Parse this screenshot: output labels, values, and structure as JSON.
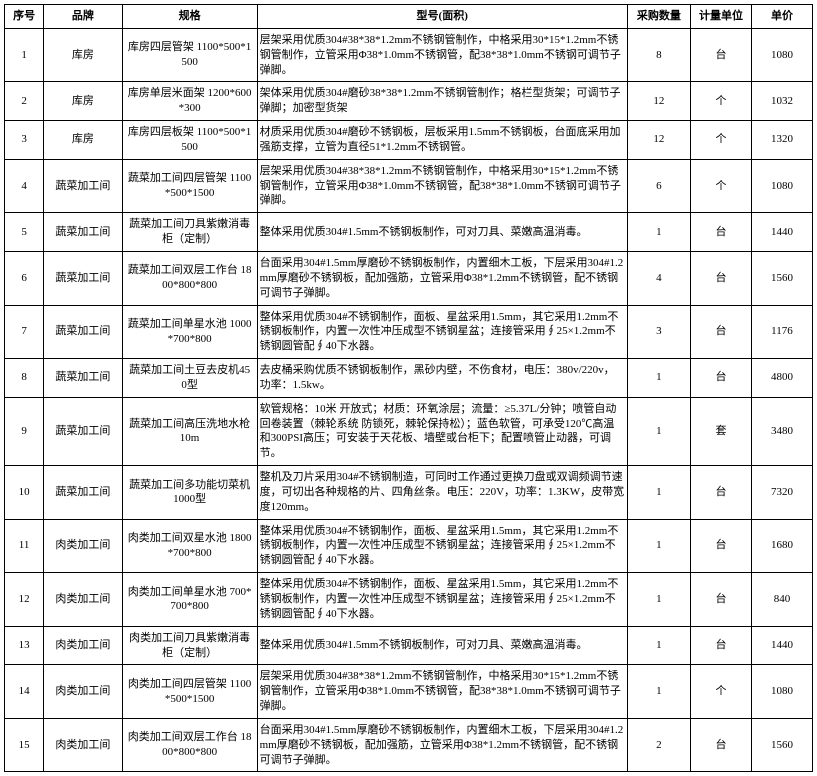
{
  "headers": {
    "seq": "序号",
    "brand": "品牌",
    "spec": "规格",
    "model": "型号(面积)",
    "qty": "采购数量",
    "unit": "计量单位",
    "price": "单价"
  },
  "rows": [
    {
      "seq": "1",
      "brand": "库房",
      "spec": "库房四层管架 1100*500*1500",
      "model": "层架采用优质304#38*38*1.2mm不锈钢管制作，中格采用30*15*1.2mm不锈钢管制作，立管采用Φ38*1.0mm不锈钢管，配38*38*1.0mm不锈钢可调节子弹脚。",
      "qty": "8",
      "unit": "台",
      "price": "1080"
    },
    {
      "seq": "2",
      "brand": "库房",
      "spec": "库房单层米面架 1200*600*300",
      "model": "架体采用优质304#磨砂38*38*1.2mm不锈钢管制作；格栏型货架；可调节子弹脚；加密型货架",
      "qty": "12",
      "unit": "个",
      "price": "1032"
    },
    {
      "seq": "3",
      "brand": "库房",
      "spec": "库房四层板架 1100*500*1500",
      "model": "材质采用优质304#磨砂不锈钢板，层板采用1.5mm不锈钢板，台面底采用加强筋支撑，立管为直径51*1.2mm不锈钢管。",
      "qty": "12",
      "unit": "个",
      "price": "1320"
    },
    {
      "seq": "4",
      "brand": "蔬菜加工间",
      "spec": "蔬菜加工间四层管架 1100*500*1500",
      "model": "层架采用优质304#38*38*1.2mm不锈钢管制作，中格采用30*15*1.2mm不锈钢管制作，立管采用Φ38*1.0mm不锈钢管，配38*38*1.0mm不锈钢可调节子弹脚。",
      "qty": "6",
      "unit": "个",
      "price": "1080"
    },
    {
      "seq": "5",
      "brand": "蔬菜加工间",
      "spec": "蔬菜加工间刀具紫嫩消毒柜（定制）",
      "model": "整体采用优质304#1.5mm不锈钢板制作，可对刀具、菜嫩高温消毒。",
      "qty": "1",
      "unit": "台",
      "price": "1440"
    },
    {
      "seq": "6",
      "brand": "蔬菜加工间",
      "spec": "蔬菜加工间双层工作台 1800*800*800",
      "model": "台面采用304#1.5mm厚磨砂不锈钢板制作，内置细木工板，下层采用304#1.2mm厚磨砂不锈钢板，配加强筋，立管采用Φ38*1.2mm不锈钢管，配不锈钢可调节子弹脚。",
      "qty": "4",
      "unit": "台",
      "price": "1560"
    },
    {
      "seq": "7",
      "brand": "蔬菜加工间",
      "spec": "蔬菜加工间单星水池 1000*700*800",
      "model": "整体采用优质304#不锈钢制作，面板、星盆采用1.5mm，其它采用1.2mm不锈钢板制作，内置一次性冲压成型不锈钢星盆；连接管采用∮25×1.2mm不锈钢圆管配∮40下水器。",
      "qty": "3",
      "unit": "台",
      "price": "1176"
    },
    {
      "seq": "8",
      "brand": "蔬菜加工间",
      "spec": "蔬菜加工间土豆去皮机450型",
      "model": "去皮桶采购优质不锈钢板制作，黑砂内壁，不伤食材，电压：380v/220v，功率：1.5kw。",
      "qty": "1",
      "unit": "台",
      "price": "4800"
    },
    {
      "seq": "9",
      "brand": "蔬菜加工间",
      "spec": "蔬菜加工间高压洗地水枪10m",
      "model": "软管规格：10米 开放式；材质：环氧涂层；流量：≥5.37L/分钟；喷管自动回卷装置（棘轮系统 防锁死，棘轮保持松）；蓝色软管，可承受120℃高温和300PSI高压；可安装于天花板、墙壁或台柜下；配置喷管止动器，可调节。",
      "qty": "1",
      "unit": "套",
      "price": "3480"
    },
    {
      "seq": "10",
      "brand": "蔬菜加工间",
      "spec": "蔬菜加工间多功能切菜机1000型",
      "model": "整机及刀片采用304#不锈钢制造，可同时工作通过更换刀盘或双调频调节速度，可切出各种规格的片、四角丝条。电压：220V，功率：1.3KW，皮带宽度120mm。",
      "qty": "1",
      "unit": "台",
      "price": "7320"
    },
    {
      "seq": "11",
      "brand": "肉类加工间",
      "spec": "肉类加工间双星水池 1800*700*800",
      "model": "整体采用优质304#不锈钢制作，面板、星盆采用1.5mm，其它采用1.2mm不锈钢板制作，内置一次性冲压成型不锈钢星盆；连接管采用∮25×1.2mm不锈钢圆管配∮40下水器。",
      "qty": "1",
      "unit": "台",
      "price": "1680"
    },
    {
      "seq": "12",
      "brand": "肉类加工间",
      "spec": "肉类加工间单星水池 700*700*800",
      "model": "整体采用优质304#不锈钢制作，面板、星盆采用1.5mm，其它采用1.2mm不锈钢板制作，内置一次性冲压成型不锈钢星盆；连接管采用∮25×1.2mm不锈钢圆管配∮40下水器。",
      "qty": "1",
      "unit": "台",
      "price": "840"
    },
    {
      "seq": "13",
      "brand": "肉类加工间",
      "spec": "肉类加工间刀具紫嫩消毒柜（定制）",
      "model": "整体采用优质304#1.5mm不锈钢板制作，可对刀具、菜嫩高温消毒。",
      "qty": "1",
      "unit": "台",
      "price": "1440"
    },
    {
      "seq": "14",
      "brand": "肉类加工间",
      "spec": "肉类加工间四层管架 1100*500*1500",
      "model": "层架采用优质304#38*38*1.2mm不锈钢管制作，中格采用30*15*1.2mm不锈钢管制作，立管采用Φ38*1.0mm不锈钢管，配38*38*1.0mm不锈钢可调节子弹脚。",
      "qty": "1",
      "unit": "个",
      "price": "1080"
    },
    {
      "seq": "15",
      "brand": "肉类加工间",
      "spec": "肉类加工间双层工作台 1800*800*800",
      "model": "台面采用304#1.5mm厚磨砂不锈钢板制作，内置细木工板，下层采用304#1.2mm厚磨砂不锈钢板，配加强筋，立管采用Φ38*1.2mm不锈钢管，配不锈钢可调节子弹脚。",
      "qty": "2",
      "unit": "台",
      "price": "1560"
    }
  ]
}
